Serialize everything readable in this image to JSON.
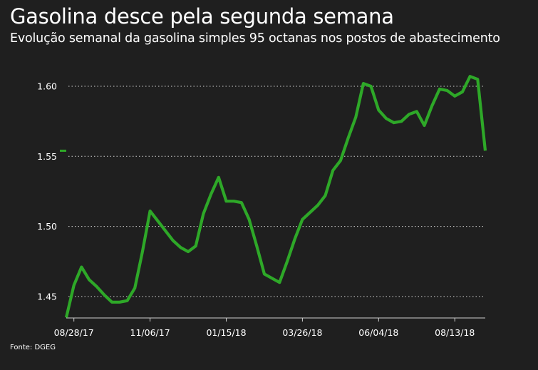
{
  "header": {
    "title": "Gasolina desce pela segunda semana",
    "subtitle": "Evolução semanal da gasolina simples 95 octanas nos postos de abastecimento"
  },
  "footer": {
    "source": "Fonte: DGEG"
  },
  "colors": {
    "background": "#1f1f1f",
    "line": "#2ea828",
    "grid": "#cfcfcf",
    "text": "#ffffff"
  },
  "chart_data": {
    "type": "line",
    "title": "Gasolina desce pela segunda semana",
    "subtitle": "Evolução semanal da gasolina simples 95 octanas nos postos de abastecimento",
    "xlabel": "",
    "ylabel": "",
    "ylim": [
      1.435,
      1.635
    ],
    "yticks": [
      1.45,
      1.5,
      1.55,
      1.6
    ],
    "ytick_labels": [
      "1.45",
      "1.50",
      "1.55",
      "1.60"
    ],
    "xtick_labels": [
      "08/28/17",
      "11/06/17",
      "01/15/18",
      "03/26/18",
      "06/04/18",
      "08/13/18"
    ],
    "xtick_index": [
      1,
      11,
      21,
      31,
      41,
      51
    ],
    "grid": true,
    "legend": "none",
    "current_value_marker": 1.554,
    "series": [
      {
        "values": [
          1.435,
          1.458,
          1.471,
          1.462,
          1.457,
          1.451,
          1.446,
          1.446,
          1.447,
          1.456,
          1.482,
          1.511,
          1.504,
          1.497,
          1.49,
          1.485,
          1.482,
          1.486,
          1.509,
          1.523,
          1.535,
          1.518,
          1.518,
          1.517,
          1.505,
          1.486,
          1.466,
          1.463,
          1.46,
          1.475,
          1.491,
          1.505,
          1.51,
          1.515,
          1.522,
          1.54,
          1.547,
          1.563,
          1.578,
          1.602,
          1.6,
          1.583,
          1.577,
          1.574,
          1.575,
          1.58,
          1.582,
          1.572,
          1.586,
          1.598,
          1.597,
          1.593,
          1.596,
          1.607,
          1.605,
          1.554
        ]
      }
    ]
  }
}
